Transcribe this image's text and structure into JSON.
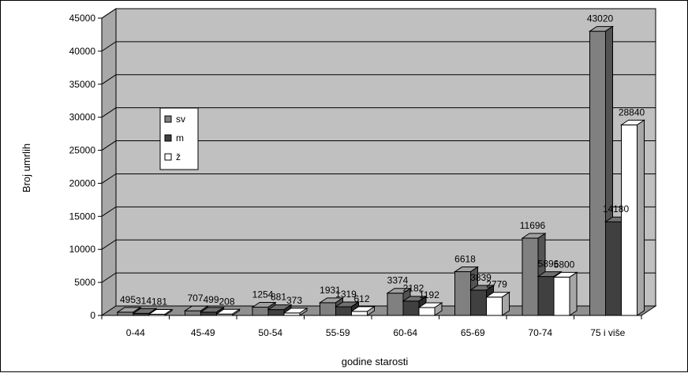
{
  "chart_data": {
    "type": "bar",
    "xlabel": "godine starosti",
    "ylabel": "Broj umrlih",
    "ylim": [
      0,
      45000
    ],
    "yticks": [
      0,
      5000,
      10000,
      15000,
      20000,
      25000,
      30000,
      35000,
      40000,
      45000
    ],
    "categories": [
      "0-44",
      "45-49",
      "50-54",
      "55-59",
      "60-64",
      "65-69",
      "70-74",
      "75 i više"
    ],
    "series": [
      {
        "name": "sv",
        "color": "#808080",
        "values": [
          495,
          707,
          1254,
          1931,
          3374,
          6618,
          11696,
          43020
        ]
      },
      {
        "name": "m",
        "color": "#404040",
        "values": [
          314,
          499,
          881,
          1319,
          2182,
          3839,
          5896,
          14180
        ]
      },
      {
        "name": "ž",
        "color": "#ffffff",
        "values": [
          181,
          208,
          373,
          612,
          1192,
          2779,
          5800,
          28840
        ]
      }
    ],
    "grid": true,
    "legend": "left-middle",
    "style": "3d-clustered-column"
  }
}
